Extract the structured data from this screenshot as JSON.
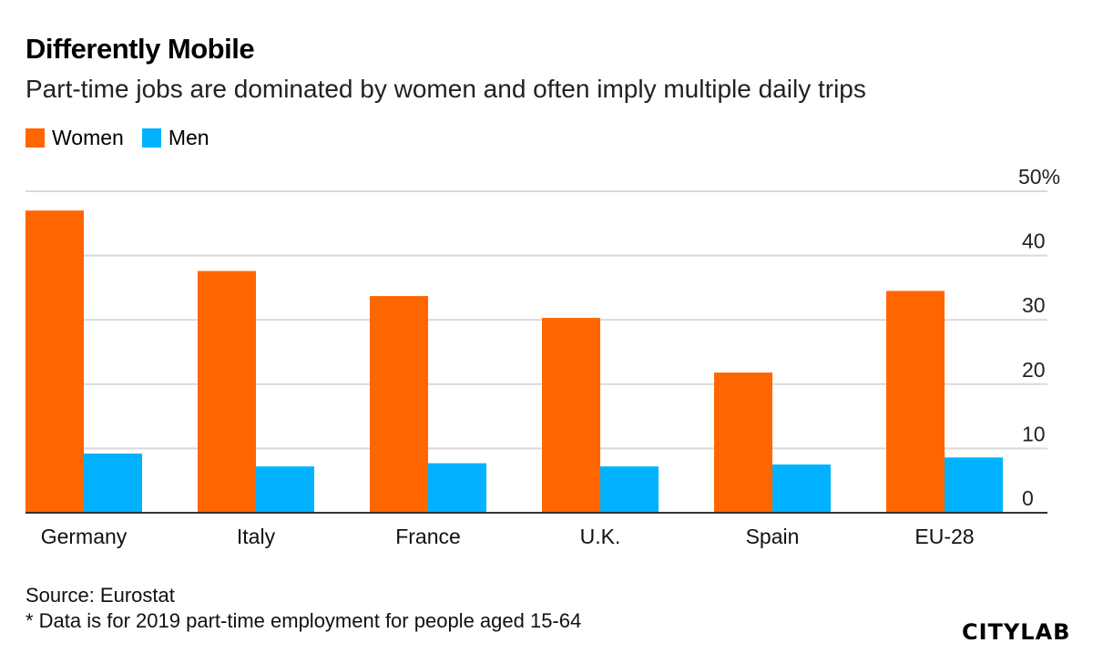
{
  "colors": {
    "women": "#ff6600",
    "men": "#00b2ff",
    "grid": "#d9d9d9",
    "axis": "#333333"
  },
  "footer": {
    "source": "Source: Eurostat",
    "note": "* Data is for 2019 part-time employment for people aged 15-64",
    "logo": "CITYLAB"
  },
  "chart_data": {
    "type": "bar",
    "title": "Differently Mobile",
    "subtitle": "Part-time jobs are dominated by women and often imply multiple daily trips",
    "categories": [
      "Germany",
      "Italy",
      "France",
      "U.K.",
      "Spain",
      "EU-28"
    ],
    "series": [
      {
        "name": "Women",
        "values": [
          47.0,
          37.6,
          33.7,
          30.3,
          21.8,
          34.5
        ]
      },
      {
        "name": "Men",
        "values": [
          9.2,
          7.2,
          7.7,
          7.2,
          7.5,
          8.6
        ]
      }
    ],
    "yticks": [
      "0",
      "10",
      "20",
      "30",
      "40",
      "50%"
    ],
    "ylim": [
      0,
      50
    ],
    "grid": true,
    "legend_position": "top-left",
    "xlabel": "",
    "ylabel": ""
  }
}
